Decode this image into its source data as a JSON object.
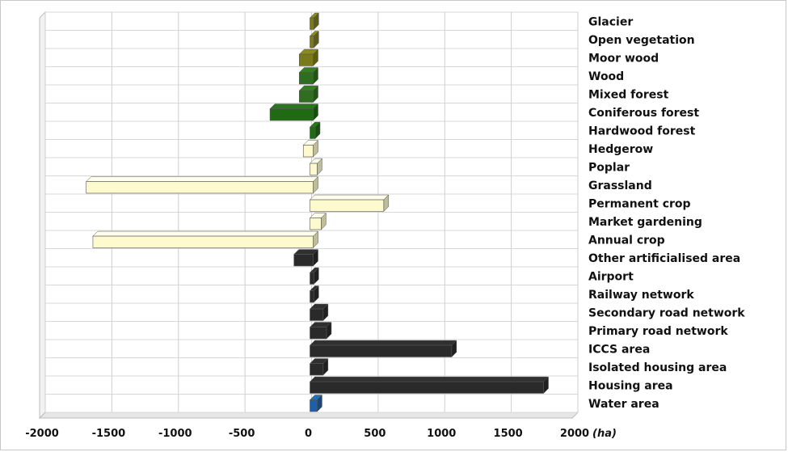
{
  "chart_data": {
    "type": "bar",
    "orientation": "horizontal",
    "unit_label": "(ha)",
    "xlim": [
      -2000,
      2000
    ],
    "xticks": [
      "-2000",
      "-1500",
      "-1000",
      "-500",
      "0",
      "500",
      "1000",
      "1500",
      "2000"
    ],
    "xtick_values": [
      -2000,
      -1500,
      -1000,
      -500,
      0,
      500,
      1000,
      1500,
      2000
    ],
    "grid": true,
    "categories": [
      "Glacier",
      "Open vegetation",
      "Moor wood",
      "Wood",
      "Mixed forest",
      "Coniferous forest",
      "Hardwood forest",
      "Hedgerow",
      "Poplar",
      "Grassland",
      "Permanent crop",
      "Market gardening",
      "Annual crop",
      "Other artificialised area",
      "Airport",
      "Railway network",
      "Secondary road network",
      "Primary road network",
      "ICCS area",
      "Isolated housing area",
      "Housing area",
      "Water area"
    ],
    "values": [
      5,
      5,
      -80,
      -80,
      -80,
      -300,
      15,
      -50,
      30,
      -1680,
      530,
      60,
      -1630,
      -120,
      5,
      5,
      75,
      100,
      1040,
      75,
      1730,
      30
    ],
    "colors": [
      "#7a7a1a",
      "#7a7a1a",
      "#7a7a1a",
      "#2e6e1e",
      "#2e6e1e",
      "#1f6a12",
      "#1f6a12",
      "#fdfacd",
      "#fdfacd",
      "#fdfacd",
      "#fdfacd",
      "#fdfacd",
      "#fdfacd",
      "#2a2a2a",
      "#2a2a2a",
      "#2a2a2a",
      "#2a2a2a",
      "#2a2a2a",
      "#2a2a2a",
      "#2a2a2a",
      "#2a2a2a",
      "#1f5fa8"
    ]
  }
}
